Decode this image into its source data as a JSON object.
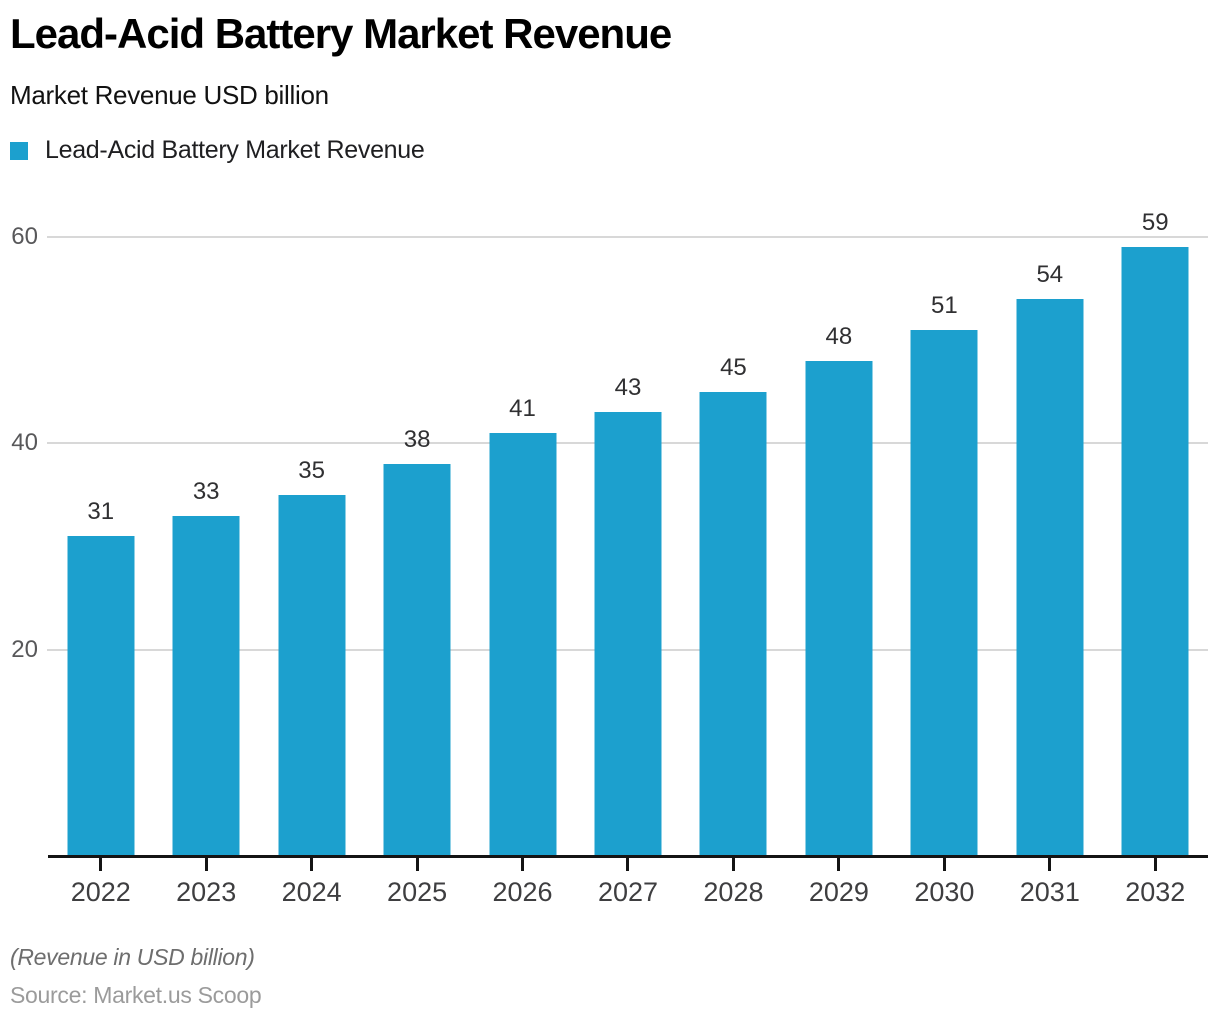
{
  "header": {
    "title": "Lead-Acid Battery Market Revenue",
    "subtitle": "Market Revenue USD billion"
  },
  "legend": {
    "label": "Lead-Acid Battery Market Revenue",
    "swatch_color": "#1CA0CE"
  },
  "chart_data": {
    "type": "bar",
    "title": "Lead-Acid Battery Market Revenue",
    "subtitle": "Market Revenue USD billion",
    "series_name": "Lead-Acid Battery Market Revenue",
    "categories": [
      "2022",
      "2023",
      "2024",
      "2025",
      "2026",
      "2027",
      "2028",
      "2029",
      "2030",
      "2031",
      "2032"
    ],
    "values": [
      31,
      33,
      35,
      38,
      41,
      43,
      45,
      48,
      51,
      54,
      59
    ],
    "xlabel": "",
    "ylabel": "Revenue in USD billion",
    "ylim": [
      0,
      60
    ],
    "yticks": [
      20,
      40,
      60
    ],
    "grid": true,
    "bar_color": "#1CA0CE",
    "gridline_color": "#d8d8d8",
    "axis_color": "#141414",
    "legend_position": "top-left",
    "value_labels": "above bars"
  },
  "footer": {
    "note": "(Revenue in USD billion)",
    "source": "Source: Market.us Scoop"
  }
}
